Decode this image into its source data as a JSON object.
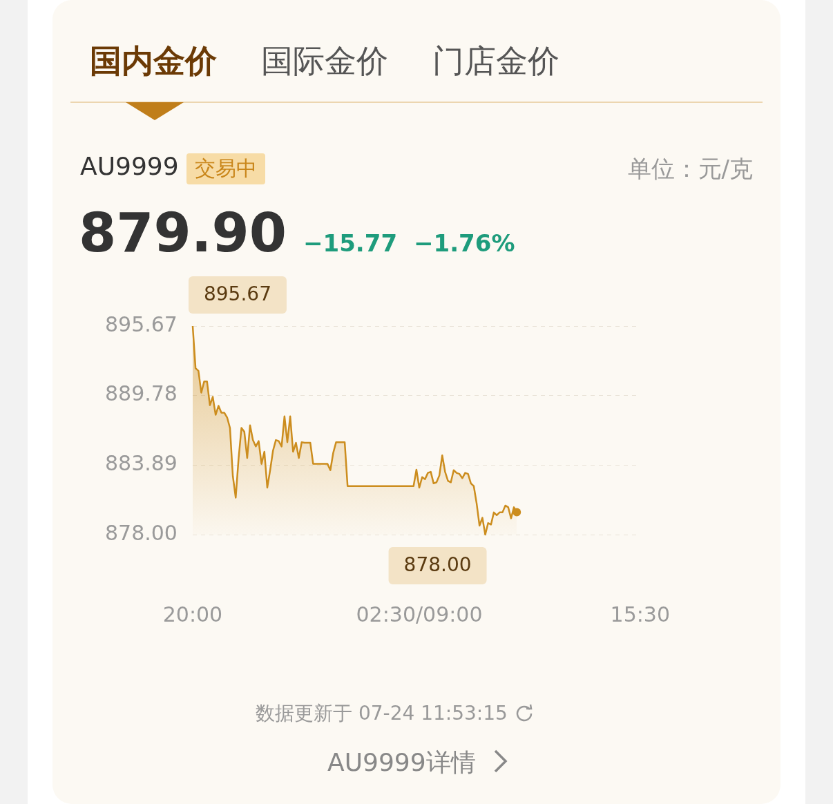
{
  "chart_data": {
    "type": "area",
    "title": "AU9999",
    "ylim": [
      878,
      895.67
    ],
    "yticks": [
      {
        "value": 878,
        "label": "878.00"
      },
      883.89,
      889.78,
      895.67
    ],
    "grid": "y",
    "legend": false,
    "categories": [
      "20:00",
      null,
      null,
      null,
      null,
      null,
      null,
      null,
      null,
      null,
      null,
      null,
      null,
      null,
      null,
      null,
      null,
      null,
      null,
      null,
      null,
      null,
      null,
      null,
      null,
      null,
      null,
      null,
      null,
      null,
      null,
      null,
      null,
      null,
      null,
      null,
      null,
      null,
      null,
      null,
      null,
      null,
      null,
      null,
      null,
      null,
      null,
      null,
      null,
      null,
      null,
      null,
      null,
      null,
      null,
      null,
      null,
      null,
      null,
      null,
      null,
      null,
      null,
      null,
      null,
      null,
      null,
      null,
      null,
      null,
      null,
      null,
      null,
      null,
      null,
      null,
      null,
      null,
      null,
      "02:30/09:00",
      null,
      null,
      null,
      null,
      null,
      null,
      null,
      null,
      null,
      null,
      null,
      null,
      null,
      null,
      null,
      null,
      null,
      null,
      null,
      null,
      null,
      null,
      null,
      null,
      null,
      null,
      null,
      null,
      null,
      null,
      null,
      null,
      null,
      null,
      null,
      null,
      null,
      null,
      null,
      null,
      null,
      null,
      null,
      null,
      null,
      null,
      null,
      null,
      null,
      null,
      null,
      null,
      null,
      null,
      null,
      null,
      null,
      null,
      null,
      null,
      null,
      null,
      null,
      null,
      null,
      null,
      null,
      null,
      null,
      null,
      null,
      null,
      null,
      null,
      null,
      null,
      "15:30"
    ],
    "series": [
      {
        "color": "#cc8d1e",
        "values": [
          895.67,
          892.09,
          891.87,
          890.03,
          890.97,
          890.97,
          888.96,
          889.67,
          888.15,
          888.91,
          888.33,
          888.33,
          887.93,
          887.04,
          882.96,
          881.13,
          884.44,
          887.04,
          886.72,
          884.49,
          887.26,
          886.01,
          885.47,
          885.92,
          883.99,
          885.02,
          881.98,
          883.46,
          885.11,
          886.01,
          885.92,
          885.47,
          888.02,
          885.83,
          888.02,
          885.02,
          885.78,
          884.49,
          885.83,
          885.78,
          885.78,
          885.78,
          883.99,
          883.99,
          883.99,
          883.99,
          883.99,
          883.99,
          883.46,
          884.93,
          885.83,
          885.83,
          885.83,
          885.83,
          882.11,
          882.11,
          882.11,
          882.11,
          882.11,
          882.11,
          882.11,
          882.11,
          882.11,
          882.11,
          882.11,
          882.11,
          882.11,
          882.11,
          882.11,
          882.11,
          882.11,
          882.11,
          882.11,
          882.11,
          882.11,
          882.11,
          882.11,
          882.11,
          883.5,
          881.98,
          882.87,
          882.7,
          883.23,
          883.32,
          882.34,
          882.43,
          883.01,
          884.71,
          883.32,
          882.56,
          882.43,
          883.46,
          883.23,
          883.14,
          882.78,
          883.23,
          883.14,
          882.34,
          882.11,
          880.64,
          878.76,
          879.43,
          878.0,
          878.98,
          878.85,
          879.88,
          879.65,
          879.88,
          879.88,
          880.46,
          880.32,
          879.38,
          880.32,
          879.9,
          null,
          null,
          null,
          null,
          null,
          null,
          null,
          null,
          null,
          null,
          null,
          null,
          null,
          null,
          null,
          null,
          null,
          null,
          null,
          null,
          null,
          null,
          null,
          null,
          null,
          null,
          null,
          null,
          null,
          null,
          null,
          null,
          null,
          null,
          null,
          null,
          null,
          null,
          null,
          null,
          null,
          null,
          null
        ]
      }
    ],
    "annotations": [
      "国内金价",
      "国际金价",
      "门店金价",
      "交易中",
      "单位：元/克",
      "879.90",
      "−15.77",
      "−1.76%",
      "数据更新于 07-24 11:53:15",
      "AU9999详情",
      "895.67",
      "878.00"
    ]
  }
}
